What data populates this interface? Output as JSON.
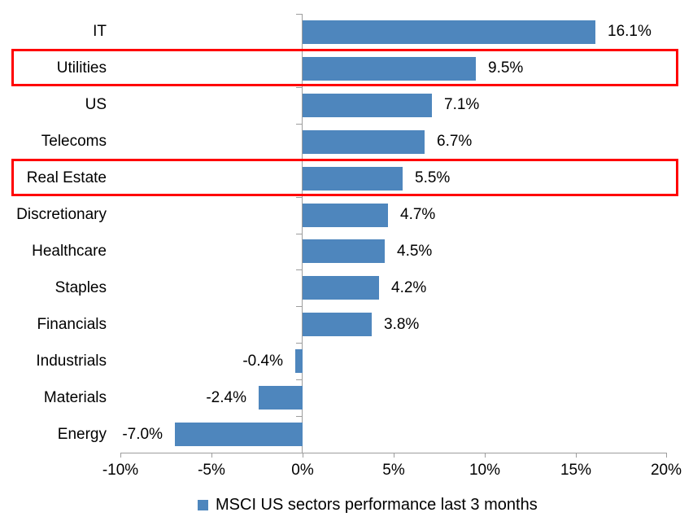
{
  "chart_data": {
    "type": "bar",
    "orientation": "horizontal",
    "title": "",
    "xlabel": "",
    "ylabel": "",
    "categories": [
      "IT",
      "Utilities",
      "US",
      "Telecoms",
      "Real Estate",
      "Discretionary",
      "Healthcare",
      "Staples",
      "Financials",
      "Industrials",
      "Materials",
      "Energy"
    ],
    "values": [
      16.1,
      9.5,
      7.1,
      6.7,
      5.5,
      4.7,
      4.5,
      4.2,
      3.8,
      -0.4,
      -2.4,
      -7.0
    ],
    "value_labels": [
      "16.1%",
      "9.5%",
      "7.1%",
      "6.7%",
      "5.5%",
      "4.7%",
      "4.5%",
      "4.2%",
      "3.8%",
      "-0.4%",
      "-2.4%",
      "-7.0%"
    ],
    "highlighted_categories": [
      "Utilities",
      "Real Estate"
    ],
    "highlighted_rows": [
      1,
      4
    ],
    "xlim": [
      -10,
      20
    ],
    "x_tick_values": [
      -10,
      -5,
      0,
      5,
      10,
      15,
      20
    ],
    "x_tick_labels": [
      "-10%",
      "-5%",
      "0%",
      "5%",
      "10%",
      "15%",
      "20%"
    ],
    "grid": false,
    "legend_position": "bottom",
    "legend": "MSCI US sectors performance last 3 months",
    "bar_color": "#4E86BD",
    "highlight_color": "#FF0000",
    "axis_color": "#9D9D9D",
    "text_color": "#000000"
  }
}
